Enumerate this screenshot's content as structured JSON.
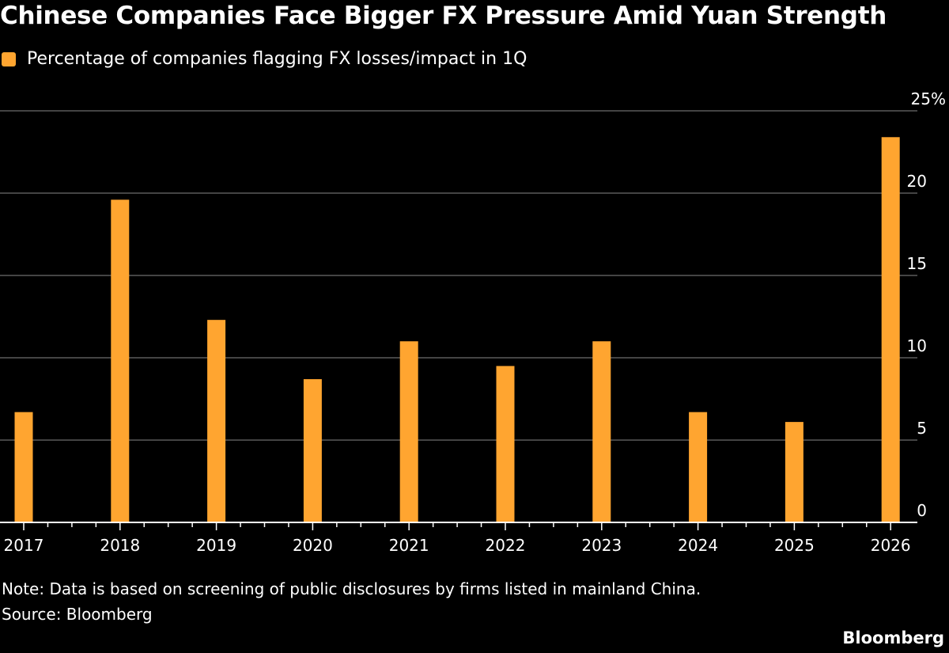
{
  "header": {
    "title": "Chinese Companies Face Bigger FX Pressure Amid Yuan Strength"
  },
  "legend": {
    "label": "Percentage of companies flagging FX losses/impact in 1Q"
  },
  "footer": {
    "note": "Note: Data is based on screening of public disclosures by firms listed in mainland China.",
    "source": "Source: Bloomberg",
    "brand": "Bloomberg"
  },
  "colors": {
    "background": "#000000",
    "bar": "#ffa530",
    "grid": "#5a5a5a",
    "axis": "#ffffff",
    "text": "#ffffff"
  },
  "chart_data": {
    "type": "bar",
    "categories": [
      "2017",
      "2018",
      "2019",
      "2020",
      "2021",
      "2022",
      "2023",
      "2024",
      "2025",
      "2026"
    ],
    "series": [
      {
        "name": "Percentage of companies flagging FX losses/impact in 1Q",
        "values": [
          6.7,
          19.6,
          12.3,
          8.7,
          11.0,
          9.5,
          11.0,
          6.7,
          6.1,
          23.4
        ]
      }
    ],
    "yticks": [
      "0",
      "5",
      "10",
      "15",
      "20",
      "25%"
    ],
    "ylim": [
      0,
      25
    ],
    "ylabel": "",
    "xlabel": "",
    "grid": true,
    "y_axis_side": "right",
    "legend_position": "top-left"
  }
}
